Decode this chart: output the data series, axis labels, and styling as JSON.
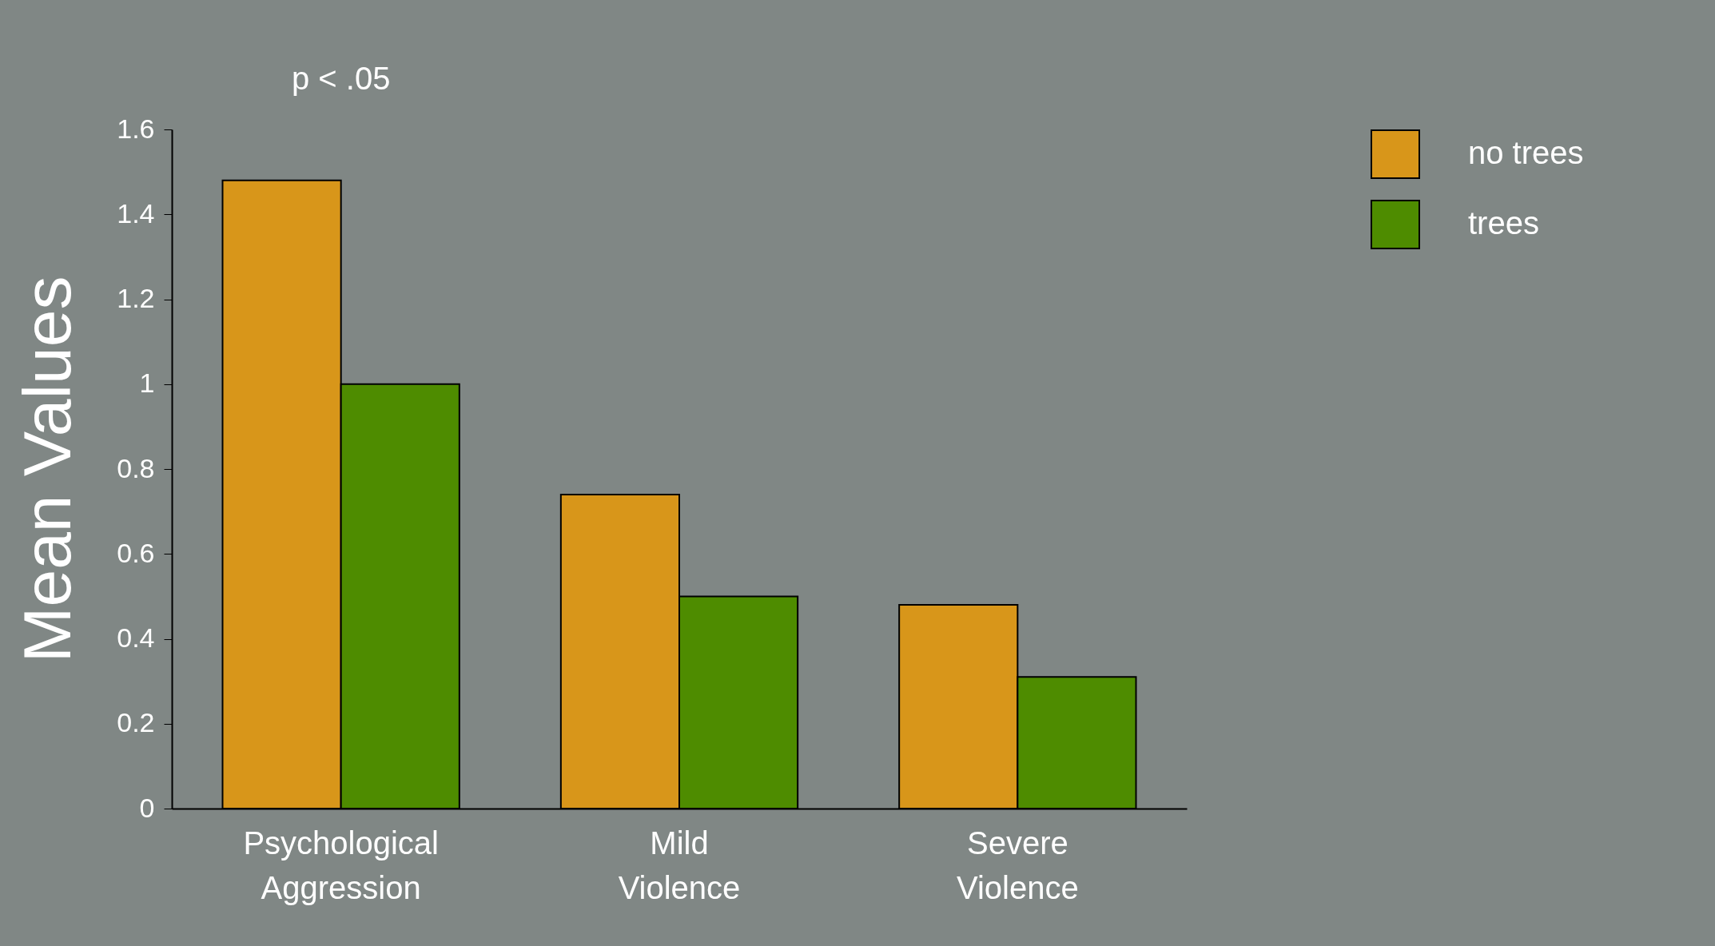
{
  "chart_data": {
    "type": "bar",
    "ylabel": "Mean Values",
    "categories": [
      "Psychological Aggression",
      "Mild Violence",
      "Severe Violence"
    ],
    "series": [
      {
        "name": "no trees",
        "color": "#d8961a",
        "values": [
          1.48,
          0.74,
          0.48
        ]
      },
      {
        "name": "trees",
        "color": "#4e8c00",
        "values": [
          1.0,
          0.5,
          0.31
        ]
      }
    ],
    "ylim": [
      0,
      1.6
    ],
    "yticks": [
      0,
      {
        "value": 0.2,
        "label": "0.2"
      },
      {
        "value": 0.4,
        "label": "0.4"
      },
      {
        "value": 0.6,
        "label": "0.6"
      },
      {
        "value": 0.8,
        "label": "0.8"
      },
      1,
      {
        "value": 1.2,
        "label": "1.2"
      },
      {
        "value": 1.4,
        "label": "1.4"
      },
      {
        "value": 1.6,
        "label": "1.6"
      }
    ],
    "grid": false,
    "legend": "top right",
    "annotations": [
      "p < .05"
    ]
  }
}
